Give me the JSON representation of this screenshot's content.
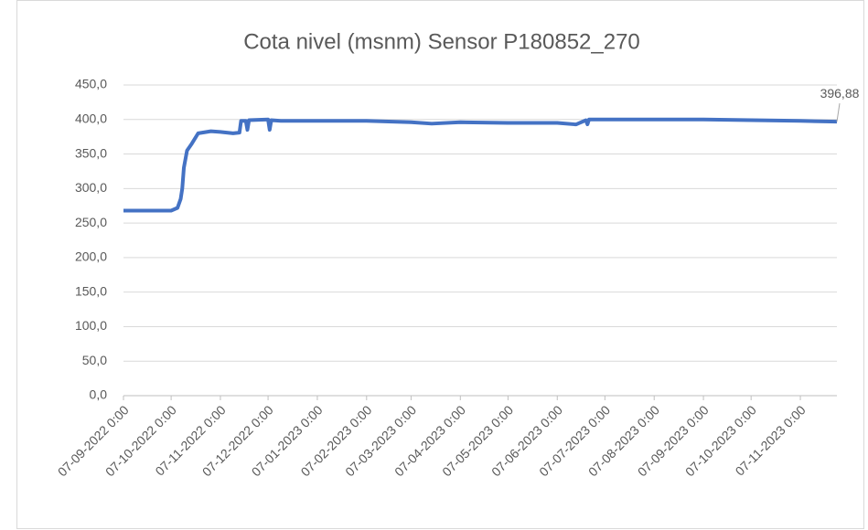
{
  "chart_data": {
    "type": "line",
    "title": "Cota nivel (msnm) Sensor P180852_270",
    "x": [
      "2022-09-07",
      "2022-09-20",
      "2022-10-07",
      "2022-10-11",
      "2022-10-13",
      "2022-10-14",
      "2022-10-15",
      "2022-10-17",
      "2022-10-20",
      "2022-10-24",
      "2022-11-01",
      "2022-11-07",
      "2022-11-15",
      "2022-11-19",
      "2022-11-20",
      "2022-11-23",
      "2022-11-24",
      "2022-11-25",
      "2022-12-07",
      "2022-12-08",
      "2022-12-09",
      "2022-12-15",
      "2023-01-07",
      "2023-02-07",
      "2023-03-07",
      "2023-03-20",
      "2023-04-07",
      "2023-05-07",
      "2023-06-07",
      "2023-06-18",
      "2023-06-19",
      "2023-06-25",
      "2023-06-26",
      "2023-06-27",
      "2023-07-07",
      "2023-08-07",
      "2023-09-07",
      "2023-10-07",
      "2023-11-07",
      "2023-11-30"
    ],
    "series": [
      {
        "name": "Cota nivel",
        "color": "#4472c4",
        "values": [
          268,
          268,
          268,
          272,
          285,
          300,
          330,
          355,
          365,
          380,
          383,
          382,
          380,
          381,
          398,
          398,
          385,
          399,
          400,
          385,
          399,
          398,
          398,
          398,
          396,
          394,
          396,
          395,
          395,
          393,
          393,
          399,
          393,
          400,
          400,
          400,
          400,
          399,
          398,
          396.88
        ],
        "value_labels": [
          null,
          null,
          null,
          null,
          null,
          null,
          null,
          null,
          null,
          null,
          null,
          null,
          null,
          null,
          null,
          null,
          null,
          null,
          null,
          null,
          null,
          null,
          null,
          null,
          null,
          null,
          null,
          null,
          null,
          null,
          null,
          null,
          null,
          null,
          null,
          null,
          null,
          null,
          null,
          "396,88"
        ]
      }
    ],
    "xlim": [
      "2022-09-07",
      "2023-11-30"
    ],
    "xticks": [
      {
        "value": "2022-09-07",
        "label": "07-09-2022 0:00"
      },
      {
        "value": "2022-10-07",
        "label": "07-10-2022 0:00"
      },
      {
        "value": "2022-11-07",
        "label": "07-11-2022 0:00"
      },
      {
        "value": "2022-12-07",
        "label": "07-12-2022 0:00"
      },
      {
        "value": "2023-01-07",
        "label": "07-01-2023 0:00"
      },
      {
        "value": "2023-02-07",
        "label": "07-02-2023 0:00"
      },
      {
        "value": "2023-03-07",
        "label": "07-03-2023 0:00"
      },
      {
        "value": "2023-04-07",
        "label": "07-04-2023 0:00"
      },
      {
        "value": "2023-05-07",
        "label": "07-05-2023 0:00"
      },
      {
        "value": "2023-06-07",
        "label": "07-06-2023 0:00"
      },
      {
        "value": "2023-07-07",
        "label": "07-07-2023 0:00"
      },
      {
        "value": "2023-08-07",
        "label": "07-08-2023 0:00"
      },
      {
        "value": "2023-09-07",
        "label": "07-09-2023 0:00"
      },
      {
        "value": "2023-10-07",
        "label": "07-10-2023 0:00"
      },
      {
        "value": "2023-11-07",
        "label": "07-11-2023 0:00"
      }
    ],
    "ylim": [
      0,
      450
    ],
    "yticks": [
      {
        "value": 0,
        "label": "0,0"
      },
      {
        "value": 50,
        "label": "50,0"
      },
      {
        "value": 100,
        "label": "100,0"
      },
      {
        "value": 150,
        "label": "150,0"
      },
      {
        "value": 200,
        "label": "200,0"
      },
      {
        "value": 250,
        "label": "250,0"
      },
      {
        "value": 300,
        "label": "300,0"
      },
      {
        "value": 350,
        "label": "350,0"
      },
      {
        "value": 400,
        "label": "400,0"
      },
      {
        "value": 450,
        "label": "450,0"
      }
    ],
    "grid": true
  }
}
